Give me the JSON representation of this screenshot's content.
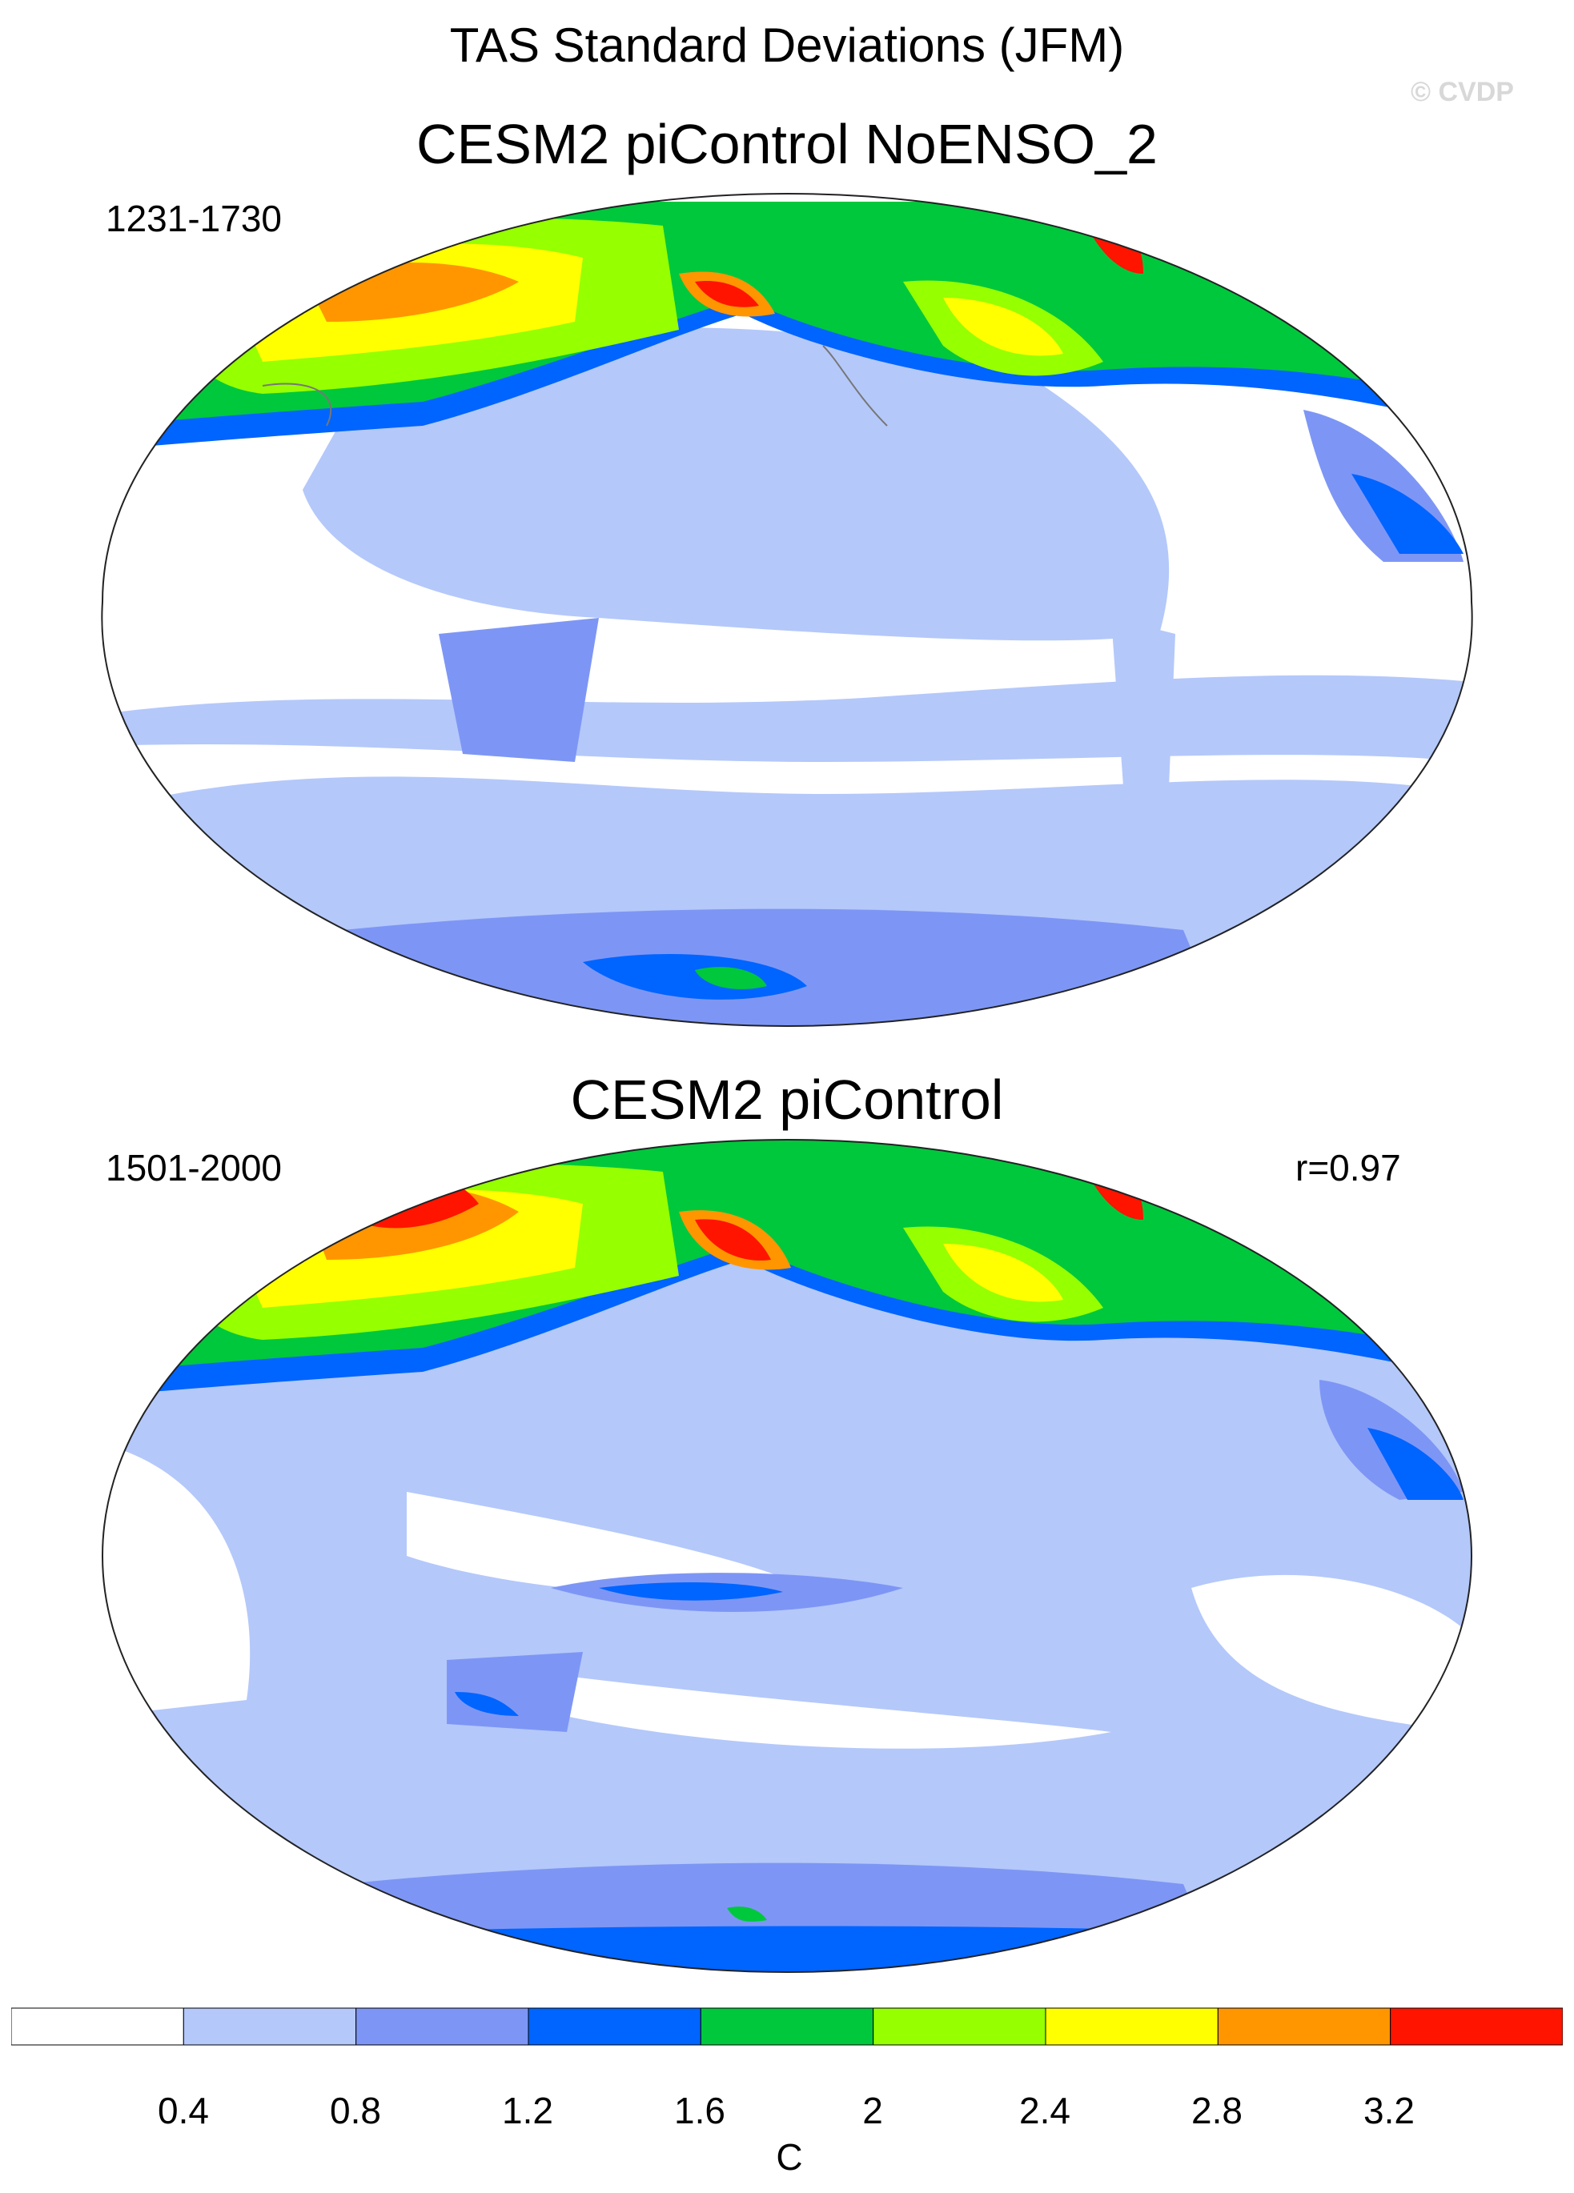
{
  "header": {
    "title": "TAS Standard Deviations (JFM)",
    "watermark": "© CVDP"
  },
  "panels": [
    {
      "title": "CESM2 piControl NoENSO_2",
      "years": "1231-1730",
      "correlation": ""
    },
    {
      "title": "CESM2 piControl",
      "years": "1501-2000",
      "correlation": "r=0.97"
    }
  ],
  "colorbar": {
    "colors": [
      "#ffffff",
      "#b4c8fa",
      "#7d96f5",
      "#0064ff",
      "#00c83c",
      "#96ff00",
      "#ffff00",
      "#ff9600",
      "#ff1400"
    ],
    "labels": [
      "0.4",
      "0.8",
      "1.2",
      "1.6",
      "2",
      "2.4",
      "2.8",
      "3.2"
    ],
    "units": "C"
  }
}
